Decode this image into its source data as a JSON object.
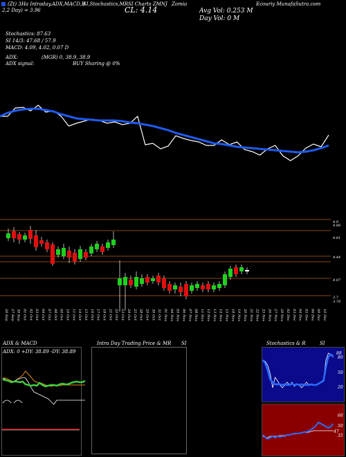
{
  "header": {
    "line1": "(Zt) 3Ha Intraday,ADX,MACD,B",
    "line1b": "SI,Stochastics,MR",
    "line1c": "SI Charts ZMNJ",
    "line1d": "Zomia",
    "line2": "2,2  Day) = 3.96",
    "cl_label": "CL: 4.14",
    "avg_vol": "Avg Vol: 0.253  M",
    "day_vol": "Day Vol: 0   M",
    "munafa": "Ecouriy MunafaSutra.com",
    "stoch": "Stochastics: 87.63",
    "rsi": "SI 14/3: 47.68 / 57.9",
    "macd": "MACD: 4.09, 4.02, 0.07 D",
    "adx": "ADX:",
    "adx_val": "(MGR) 0, 38.9, 38.9",
    "adx_signal": "ADX  signal:",
    "buy_signal": "BUY Sharing @ 0%"
  },
  "chart_data": [
    {
      "type": "line",
      "title": "",
      "series": [
        {
          "values": [
            168,
            168,
            156,
            155,
            160,
            152,
            162,
            160,
            168,
            182,
            178,
            175,
            172,
            174,
            178,
            176,
            180,
            178,
            168,
            209,
            207,
            215,
            211,
            196,
            200,
            203,
            205,
            210,
            210,
            202,
            209,
            205,
            216,
            219,
            224,
            215,
            210,
            225,
            232,
            225,
            214,
            208,
            212,
            195
          ]
        },
        {
          "values": [
            168,
            163,
            160,
            158,
            157,
            157,
            159,
            161,
            165,
            168,
            171,
            172,
            173,
            174,
            174,
            174,
            175,
            177,
            178,
            180,
            182,
            185,
            188,
            192,
            195,
            198,
            201,
            204,
            207,
            208,
            210,
            212,
            213,
            214,
            215,
            216,
            217,
            218,
            219,
            220,
            219,
            217,
            214,
            210
          ]
        }
      ]
    },
    {
      "type": "candlestick",
      "title": "",
      "y_ticks": [
        "4.81",
        "4.44",
        "4.07",
        "3.7",
        "3.70"
      ],
      "top_ticks": [
        "4.9",
        "4.86"
      ],
      "dates": [
        "26 Sep",
        "27 Sep",
        "30 Sep",
        "01 Oct",
        "02 Oct",
        "03 Oct",
        "04 Oct",
        "07 Oct",
        "08 Oct",
        "09 Oct",
        "10 Oct",
        "11 Oct",
        "14 Oct",
        "15 Oct",
        "16 Oct",
        "17 Oct",
        "18 Oct",
        "21 Oct",
        "22 Oct",
        "23 Oct",
        "24 Oct",
        "25 Oct",
        "28 Oct",
        "29 Oct",
        "30 Oct",
        "31 Oct",
        "01 Nov",
        "04 Nov",
        "05 Nov",
        "06 Nov",
        "07 Nov",
        "08 Nov",
        "11 Nov",
        "12 Nov",
        "13 Nov",
        "14 Nov",
        "15 Nov",
        "18 Nov",
        "19 Nov",
        "20 Nov",
        "21 Nov",
        "22 Nov",
        "25 Nov",
        "26 Nov",
        "27 Nov",
        "29 Nov",
        "02 Dec",
        "03 Dec",
        "04 Dec",
        "05 Dec",
        "06 Dec",
        "09 Dec",
        "10 Dec"
      ]
    }
  ],
  "panels": {
    "adx_title": "ADX  & MACD",
    "adx_readout": "ADX: 0  +DY: 38.89  -DY: 38.89",
    "intra_title": "Intra  Day Trading Price  & MR",
    "intra_si": "SI",
    "stoch_title": "Stochastics & R",
    "stoch_si": "SI",
    "stoch_ticks": [
      "80",
      "50",
      "20"
    ],
    "rsi_ticks": [
      "66",
      "50",
      "35"
    ],
    "stoch_right": "88",
    "rsi_right": "47"
  }
}
